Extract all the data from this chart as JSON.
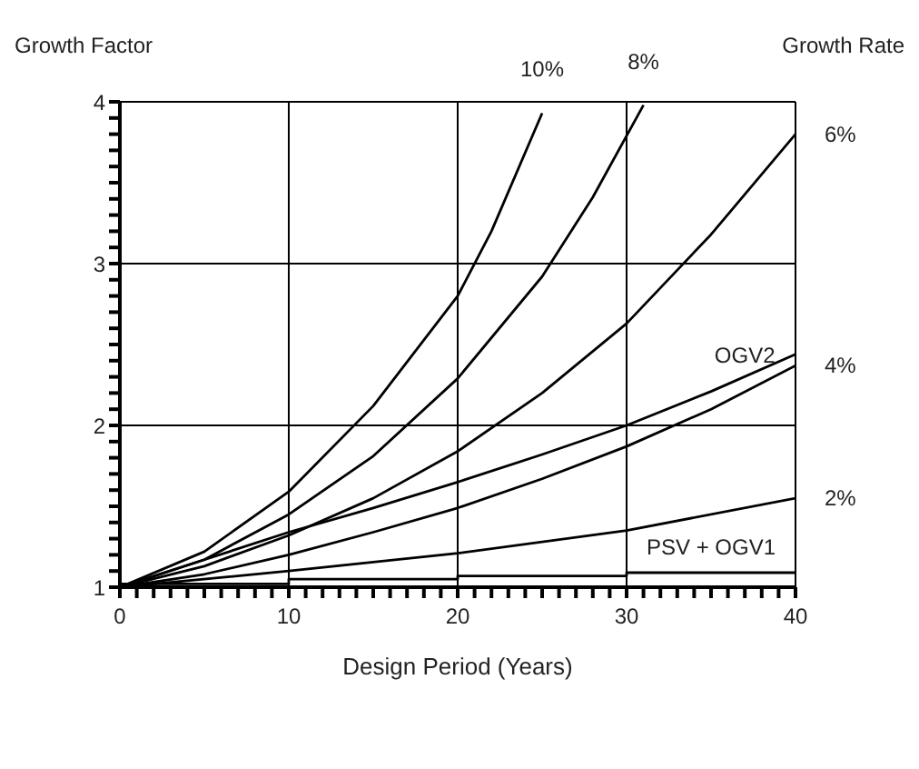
{
  "chart_data": {
    "type": "line",
    "ylabel": "Growth Factor",
    "xlabel": "Design Period (Years)",
    "xlim": [
      0,
      40
    ],
    "ylim": [
      1,
      4
    ],
    "xticks": [
      0,
      {
        "value": 1,
        "label": null
      },
      {
        "value": 2,
        "label": null
      },
      {
        "value": 3,
        "label": null
      },
      {
        "value": 4,
        "label": null
      },
      {
        "value": 5,
        "label": null
      },
      {
        "value": 6,
        "label": null
      },
      {
        "value": 7,
        "label": null
      },
      {
        "value": 8,
        "label": null
      },
      {
        "value": 9,
        "label": null
      },
      10,
      {
        "value": 11,
        "label": null
      },
      {
        "value": 12,
        "label": null
      },
      {
        "value": 13,
        "label": null
      },
      {
        "value": 14,
        "label": null
      },
      {
        "value": 15,
        "label": null
      },
      {
        "value": 16,
        "label": null
      },
      {
        "value": 17,
        "label": null
      },
      {
        "value": 18,
        "label": null
      },
      {
        "value": 19,
        "label": null
      },
      20,
      {
        "value": 21,
        "label": null
      },
      {
        "value": 22,
        "label": null
      },
      {
        "value": 23,
        "label": null
      },
      {
        "value": 24,
        "label": null
      },
      {
        "value": 25,
        "label": null
      },
      {
        "value": 26,
        "label": null
      },
      {
        "value": 27,
        "label": null
      },
      {
        "value": 28,
        "label": null
      },
      {
        "value": 29,
        "label": null
      },
      30,
      {
        "value": 31,
        "label": null
      },
      {
        "value": 32,
        "label": null
      },
      {
        "value": 33,
        "label": null
      },
      {
        "value": 34,
        "label": null
      },
      {
        "value": 35,
        "label": null
      },
      {
        "value": 36,
        "label": null
      },
      {
        "value": 37,
        "label": null
      },
      {
        "value": 38,
        "label": null
      },
      {
        "value": 39,
        "label": null
      },
      40
    ],
    "yticks": [
      1,
      {
        "value": 1.1,
        "label": null
      },
      {
        "value": 1.2,
        "label": null
      },
      {
        "value": 1.3,
        "label": null
      },
      {
        "value": 1.4,
        "label": null
      },
      {
        "value": 1.5,
        "label": null
      },
      {
        "value": 1.6,
        "label": null
      },
      {
        "value": 1.7,
        "label": null
      },
      {
        "value": 1.8,
        "label": null
      },
      {
        "value": 1.9,
        "label": null
      },
      2,
      {
        "value": 2.1,
        "label": null
      },
      {
        "value": 2.2,
        "label": null
      },
      {
        "value": 2.3,
        "label": null
      },
      {
        "value": 2.4,
        "label": null
      },
      {
        "value": 2.5,
        "label": null
      },
      {
        "value": 2.6,
        "label": null
      },
      {
        "value": 2.7,
        "label": null
      },
      {
        "value": 2.8,
        "label": null
      },
      {
        "value": 2.9,
        "label": null
      },
      3,
      {
        "value": 3.1,
        "label": null
      },
      {
        "value": 3.2,
        "label": null
      },
      {
        "value": 3.3,
        "label": null
      },
      {
        "value": 3.4,
        "label": null
      },
      {
        "value": 3.5,
        "label": null
      },
      {
        "value": 3.6,
        "label": null
      },
      {
        "value": 3.7,
        "label": null
      },
      {
        "value": 3.8,
        "label": null
      },
      {
        "value": 3.9,
        "label": null
      },
      4
    ],
    "grid": true,
    "marker": "none",
    "line_style": "solid",
    "series": [
      {
        "name": "10%",
        "color": "#000000",
        "x": [
          0,
          5,
          10,
          15,
          20,
          22,
          25
        ],
        "values": [
          1,
          1.22,
          1.59,
          2.12,
          2.8,
          3.2,
          3.93
        ]
      },
      {
        "name": "8%",
        "color": "#000000",
        "x": [
          0,
          5,
          10,
          15,
          20,
          25,
          28,
          31
        ],
        "values": [
          1,
          1.17,
          1.45,
          1.81,
          2.29,
          2.92,
          3.41,
          3.98
        ]
      },
      {
        "name": "6%",
        "color": "#000000",
        "x": [
          0,
          5,
          10,
          15,
          20,
          25,
          30,
          35,
          40
        ],
        "values": [
          1,
          1.13,
          1.32,
          1.55,
          1.84,
          2.2,
          2.63,
          3.18,
          3.8
        ]
      },
      {
        "color": "#000000",
        "x": [
          0,
          5,
          10,
          15,
          20,
          25,
          30,
          35,
          40
        ],
        "values": [
          1,
          1.17,
          1.34,
          1.49,
          1.65,
          1.82,
          2,
          2.21,
          2.44
        ]
      },
      {
        "name": "4%",
        "color": "#000000",
        "x": [
          0,
          5,
          10,
          15,
          20,
          25,
          30,
          35,
          40
        ],
        "values": [
          1,
          1.08,
          1.2,
          1.34,
          1.49,
          1.67,
          1.87,
          2.1,
          2.37
        ]
      },
      {
        "name": "2%",
        "color": "#000000",
        "x": [
          0,
          10,
          20,
          30,
          40
        ],
        "values": [
          1,
          1.1,
          1.21,
          1.35,
          1.55
        ]
      },
      {
        "type": "step",
        "color": "#000000",
        "x": [
          0,
          10,
          20,
          30,
          40
        ],
        "values": [
          1.02,
          1.05,
          1.07,
          1.09,
          1.1
        ]
      }
    ],
    "annotations": [
      "Growth Rate",
      {
        "text": "OGV2",
        "x": 37,
        "y": 2.3
      },
      {
        "text": "PSV + OGV1",
        "x": 35,
        "y": 1.11
      }
    ]
  }
}
